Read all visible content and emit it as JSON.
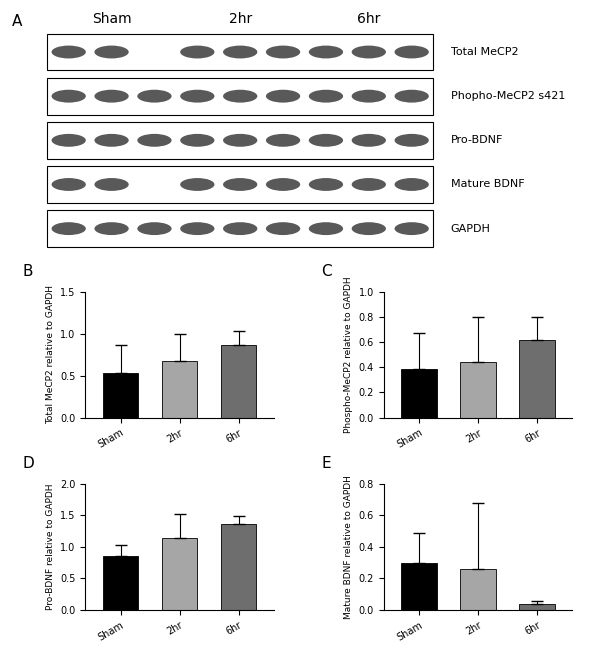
{
  "blot": {
    "title": "A",
    "groups": [
      "Sham",
      "2hr",
      "6hr"
    ],
    "rows": [
      "Total MeCP2",
      "Phopho-MeCP2 s421",
      "Pro-BDNF",
      "Mature BDNF",
      "GAPDH"
    ]
  },
  "chart_data": [
    {
      "type": "bar",
      "title": "B",
      "y_label": "Total MeCP2 relative to GAPDH",
      "categories": [
        "Sham",
        "2hr",
        "6hr"
      ],
      "values": [
        0.53,
        0.68,
        0.87
      ],
      "errors": [
        0.33,
        0.32,
        0.16
      ],
      "colors": [
        "#000000",
        "#a6a6a6",
        "#6e6e6e"
      ],
      "ylim": [
        0,
        1.5
      ],
      "yticks": [
        {
          "value": 0,
          "label": "0.0"
        },
        0.5,
        {
          "value": 1,
          "label": "1.0"
        },
        1.5
      ]
    },
    {
      "type": "bar",
      "title": "C",
      "y_label": "Phospho-MeCP2 relative to GAPDH",
      "categories": [
        "Sham",
        "2hr",
        "6hr"
      ],
      "values": [
        0.39,
        0.44,
        0.62
      ],
      "errors": [
        0.28,
        0.36,
        0.18
      ],
      "colors": [
        "#000000",
        "#a6a6a6",
        "#6e6e6e"
      ],
      "ylim": [
        0,
        1.0
      ],
      "yticks": [
        {
          "value": 0,
          "label": "0.0"
        },
        0.2,
        0.4,
        0.6,
        0.8,
        {
          "value": 1,
          "label": "1.0"
        }
      ]
    },
    {
      "type": "bar",
      "title": "D",
      "y_label": "Pro-BDNF relative to GAPDH",
      "categories": [
        "Sham",
        "2hr",
        "6hr"
      ],
      "values": [
        0.86,
        1.15,
        1.37
      ],
      "errors": [
        0.17,
        0.37,
        0.12
      ],
      "colors": [
        "#000000",
        "#a6a6a6",
        "#6e6e6e"
      ],
      "ylim": [
        0,
        2.0
      ],
      "yticks": [
        {
          "value": 0,
          "label": "0.0"
        },
        0.5,
        {
          "value": 1,
          "label": "1.0"
        },
        1.5,
        {
          "value": 2,
          "label": "2.0"
        }
      ]
    },
    {
      "type": "bar",
      "title": "E",
      "y_label": "Mature BDNF relative to GAPDH",
      "categories": [
        "Sham",
        "2hr",
        "6hr"
      ],
      "values": [
        0.3,
        0.26,
        0.04
      ],
      "errors": [
        0.19,
        0.42,
        0.02
      ],
      "colors": [
        "#000000",
        "#a6a6a6",
        "#6e6e6e"
      ],
      "ylim": [
        0,
        0.8
      ],
      "yticks": [
        {
          "value": 0,
          "label": "0.0"
        },
        0.2,
        0.4,
        0.6,
        0.8
      ]
    }
  ]
}
